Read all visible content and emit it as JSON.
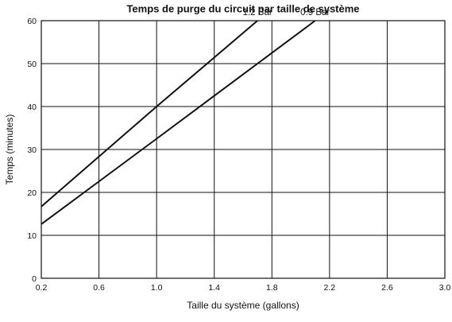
{
  "chart_data": {
    "type": "line",
    "title": "Temps de purge du circuit par taille de système",
    "xlabel": "Taille du système (gallons)",
    "ylabel": "Temps (minutes)",
    "xlim": [
      0.2,
      3.0
    ],
    "ylim": [
      0,
      60
    ],
    "x_ticks": [
      "0.2",
      "0.6",
      "1.0",
      "1.4",
      "1.8",
      "2.2",
      "2.6",
      "3.0"
    ],
    "y_ticks": [
      "0",
      "10",
      "20",
      "30",
      "40",
      "50",
      "60"
    ],
    "grid": true,
    "series": [
      {
        "name": "1.2 Bar",
        "x": [
          0.2,
          1.0,
          1.7
        ],
        "y": [
          16.7,
          40,
          60
        ],
        "color": "#111111"
      },
      {
        "name": "0.9 Bar",
        "x": [
          0.2,
          1.0,
          2.1
        ],
        "y": [
          12.6,
          32.5,
          60
        ],
        "color": "#111111"
      }
    ]
  }
}
